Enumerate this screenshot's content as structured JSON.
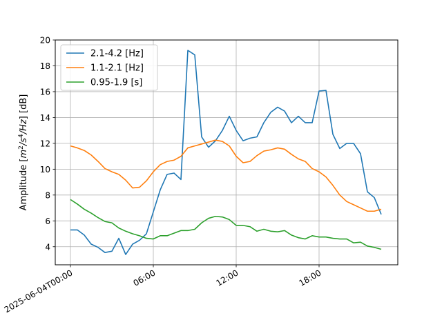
{
  "chart_data": {
    "type": "line",
    "title": "",
    "xlabel": "",
    "ylabel_parts": [
      "Amplitude [",
      "m",
      "2",
      "/",
      "s",
      "4",
      "/",
      "Hz",
      "] [dB]"
    ],
    "ylim": [
      2.6,
      20
    ],
    "yticks": [
      4,
      6,
      8,
      10,
      12,
      14,
      16,
      18,
      20
    ],
    "xlim_hours": [
      -1.1,
      23.7
    ],
    "xticks": [
      {
        "hour": 0,
        "label": "2025-06-04T00:00"
      },
      {
        "hour": 6,
        "label": "06:00"
      },
      {
        "hour": 12,
        "label": "12:00"
      },
      {
        "hour": 18,
        "label": "18:00"
      }
    ],
    "grid": true,
    "legend_position": "top-left",
    "x_hours": [
      0,
      0.5,
      1,
      1.5,
      2,
      2.5,
      3,
      3.5,
      4,
      4.5,
      5,
      5.5,
      6,
      6.5,
      7,
      7.5,
      8,
      8.5,
      9,
      9.5,
      10,
      10.5,
      11,
      11.5,
      12,
      12.5,
      13,
      13.5,
      14,
      14.5,
      15,
      15.5,
      16,
      16.5,
      17,
      17.5,
      18,
      18.5,
      19,
      19.5,
      20,
      20.5,
      21,
      21.5,
      22,
      22.5
    ],
    "series": [
      {
        "name": "2.1-4.2 [Hz]",
        "color": "#1f77b4",
        "values": [
          5.3,
          5.3,
          4.9,
          4.2,
          3.95,
          3.55,
          3.65,
          4.65,
          3.4,
          4.2,
          4.5,
          5.0,
          6.7,
          8.4,
          9.6,
          9.7,
          9.2,
          19.2,
          18.85,
          12.5,
          11.7,
          12.2,
          13.0,
          14.1,
          13.0,
          12.2,
          12.4,
          12.5,
          13.6,
          14.4,
          14.8,
          14.5,
          13.6,
          14.1,
          13.6,
          13.6,
          16.05,
          16.1,
          12.7,
          11.6,
          12.0,
          12.0,
          11.2,
          8.25,
          7.8,
          6.5
        ]
      },
      {
        "name": "1.1-2.1 [Hz]",
        "color": "#ff7f0e",
        "values": [
          11.8,
          11.65,
          11.45,
          11.1,
          10.6,
          10.05,
          9.8,
          9.6,
          9.15,
          8.55,
          8.6,
          9.1,
          9.8,
          10.35,
          10.6,
          10.7,
          11.0,
          11.65,
          11.8,
          11.95,
          12.1,
          12.25,
          12.15,
          11.8,
          11.0,
          10.5,
          10.6,
          11.05,
          11.4,
          11.5,
          11.65,
          11.55,
          11.15,
          10.8,
          10.6,
          10.05,
          9.8,
          9.4,
          8.75,
          8.0,
          7.5,
          7.25,
          7.0,
          6.75,
          6.75,
          6.9
        ]
      },
      {
        "name": "0.95-1.9 [s]",
        "color": "#2ca02c",
        "values": [
          7.65,
          7.3,
          6.9,
          6.6,
          6.25,
          5.95,
          5.85,
          5.45,
          5.2,
          5.0,
          4.85,
          4.65,
          4.6,
          4.85,
          4.85,
          5.05,
          5.25,
          5.25,
          5.35,
          5.85,
          6.2,
          6.35,
          6.3,
          6.1,
          5.65,
          5.65,
          5.55,
          5.2,
          5.35,
          5.2,
          5.15,
          5.25,
          4.9,
          4.7,
          4.6,
          4.85,
          4.75,
          4.75,
          4.65,
          4.6,
          4.6,
          4.3,
          4.35,
          4.05,
          3.95,
          3.8
        ]
      }
    ]
  }
}
